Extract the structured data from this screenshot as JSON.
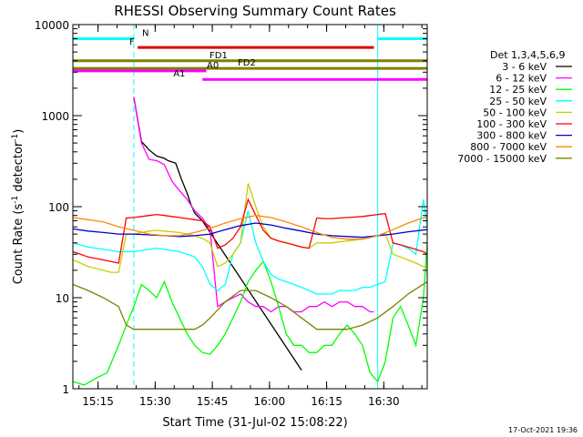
{
  "chart_data": {
    "type": "line",
    "title": "RHESSI Observing Summary Count Rates",
    "xlabel": "Start Time (31-Jul-02 15:08:22)",
    "ylabel_main": "Count Rate (s",
    "ylabel_sup1": "-1",
    "ylabel_mid": " detector",
    "ylabel_sup2": "-1",
    "ylabel_end": ")",
    "y_scale": "log",
    "ylim": [
      1,
      10000
    ],
    "xlim_minutes": [
      0,
      93
    ],
    "x_tick_labels": [
      "15:15",
      "15:30",
      "15:45",
      "16:00",
      "16:15",
      "16:30",
      "16:45"
    ],
    "x_tick_minutes": [
      6.6,
      21.6,
      36.6,
      51.6,
      66.6,
      81.6,
      96.6
    ],
    "y_tick_labels": [
      "1",
      "10",
      "100",
      "1000",
      "10000"
    ],
    "y_tick_values": [
      1,
      10,
      100,
      1000,
      10000
    ],
    "legend_header": "Det 1,3,4,5,6,9",
    "legend_position": "right",
    "series": [
      {
        "name": "3 - 6 keV",
        "color": "#000000",
        "x": [
          16,
          18,
          20,
          22,
          24,
          25,
          27,
          28.5,
          30,
          31,
          32,
          34,
          60
        ],
        "y": [
          1600,
          520,
          420,
          360,
          340,
          320,
          300,
          200,
          140,
          105,
          85,
          70,
          1.6
        ]
      },
      {
        "name": "6 - 12 keV",
        "color": "#ff00ff",
        "x": [
          16,
          17,
          18,
          20,
          22,
          24,
          26,
          28,
          30,
          32,
          34,
          36,
          38,
          40,
          42,
          44,
          46,
          48,
          50,
          52,
          54,
          56,
          58,
          60,
          62,
          64,
          66,
          68,
          70,
          72,
          74,
          76,
          78,
          79
        ],
        "y": [
          1600,
          900,
          500,
          330,
          320,
          290,
          190,
          150,
          120,
          90,
          75,
          55,
          8,
          9,
          10,
          11,
          9,
          8,
          8,
          7,
          8,
          8,
          7,
          7,
          8,
          8,
          9,
          8,
          9,
          9,
          8,
          8,
          7,
          7
        ]
      },
      {
        "name": "12 - 25 keV",
        "color": "#00ff00",
        "x": [
          0,
          3,
          6,
          9,
          12,
          14,
          16,
          18,
          20,
          22,
          24,
          26,
          28,
          30,
          32,
          34,
          36,
          38,
          40,
          42,
          44,
          46,
          48,
          50,
          52,
          54,
          56,
          58,
          60,
          62,
          64,
          66,
          68,
          70,
          72,
          74,
          76,
          78,
          80,
          82,
          84,
          86,
          88,
          90,
          92,
          93
        ],
        "y": [
          1.2,
          1.1,
          1.3,
          1.5,
          3,
          5,
          8,
          14,
          12,
          10,
          15,
          9,
          6,
          4,
          3,
          2.5,
          2.4,
          3,
          4,
          6,
          9,
          15,
          20,
          25,
          15,
          8,
          4,
          3,
          3,
          2.5,
          2.5,
          3,
          3,
          4,
          5,
          4,
          3,
          1.5,
          1.2,
          2,
          6,
          8,
          5,
          3,
          10,
          40
        ]
      },
      {
        "name": "25 - 50 keV",
        "color": "#00ffff",
        "x": [
          0,
          2,
          4,
          6,
          8,
          10,
          12,
          14,
          16,
          18,
          20,
          22,
          24,
          26,
          28,
          30,
          32,
          34,
          36,
          38,
          40,
          42,
          44,
          46,
          48,
          50,
          52,
          54,
          56,
          58,
          60,
          62,
          64,
          66,
          68,
          70,
          72,
          74,
          76,
          78,
          80,
          82,
          84,
          86,
          88,
          90,
          92,
          93
        ],
        "y": [
          40,
          38,
          36,
          35,
          34,
          33,
          32,
          32,
          32,
          33,
          34,
          35,
          34,
          33,
          32,
          30,
          28,
          22,
          14,
          12,
          14,
          30,
          40,
          90,
          40,
          25,
          18,
          16,
          15,
          14,
          13,
          12,
          11,
          11,
          11,
          12,
          12,
          12,
          13,
          13,
          14,
          15,
          40,
          38,
          35,
          30,
          120,
          60
        ]
      },
      {
        "name": "50 - 100 keV",
        "color": "#cccc00",
        "x": [
          0,
          2,
          4,
          6,
          8,
          10,
          12,
          14,
          16,
          18,
          20,
          22,
          24,
          26,
          28,
          30,
          32,
          34,
          36,
          38,
          40,
          42,
          44,
          46,
          48,
          50,
          52,
          54,
          56,
          58,
          60,
          62,
          64,
          66,
          68,
          70,
          72,
          74,
          76,
          78,
          80,
          82,
          84,
          86,
          88,
          90,
          92,
          93
        ],
        "y": [
          26,
          24,
          22,
          21,
          20,
          19,
          19,
          50,
          50,
          52,
          54,
          55,
          54,
          53,
          52,
          50,
          48,
          45,
          40,
          22,
          24,
          30,
          40,
          180,
          100,
          60,
          45,
          42,
          40,
          38,
          36,
          35,
          40,
          40,
          40,
          41,
          42,
          43,
          44,
          46,
          48,
          50,
          30,
          28,
          26,
          24,
          22,
          22
        ]
      },
      {
        "name": "100 - 300 keV",
        "color": "#ff0000",
        "x": [
          0,
          2,
          4,
          6,
          8,
          10,
          12,
          14,
          16,
          18,
          20,
          22,
          24,
          26,
          28,
          30,
          32,
          34,
          36,
          38,
          40,
          42,
          44,
          46,
          48,
          50,
          52,
          54,
          56,
          58,
          60,
          62,
          64,
          66,
          68,
          70,
          72,
          74,
          76,
          78,
          80,
          82,
          84,
          86,
          88,
          90,
          92,
          93
        ],
        "y": [
          32,
          30,
          28,
          27,
          26,
          25,
          24,
          75,
          76,
          78,
          80,
          82,
          80,
          78,
          76,
          74,
          72,
          70,
          60,
          35,
          38,
          45,
          60,
          120,
          80,
          55,
          45,
          42,
          40,
          38,
          36,
          35,
          75,
          74,
          74,
          75,
          76,
          77,
          78,
          80,
          82,
          84,
          40,
          38,
          36,
          34,
          32,
          30
        ]
      },
      {
        "name": "300 - 800 keV",
        "color": "#0000cc",
        "x": [
          0,
          4,
          8,
          12,
          16,
          20,
          24,
          28,
          32,
          36,
          40,
          44,
          48,
          52,
          56,
          60,
          64,
          68,
          72,
          76,
          80,
          84,
          88,
          93
        ],
        "y": [
          57,
          54,
          52,
          50,
          50,
          49,
          48,
          47,
          48,
          50,
          56,
          62,
          66,
          63,
          58,
          54,
          50,
          48,
          47,
          46,
          48,
          50,
          53,
          56
        ]
      },
      {
        "name": "800 - 7000 keV",
        "color": "#ff8800",
        "x": [
          0,
          4,
          8,
          12,
          16,
          20,
          24,
          28,
          32,
          36,
          40,
          44,
          48,
          52,
          56,
          60,
          64,
          68,
          72,
          76,
          80,
          84,
          88,
          93
        ],
        "y": [
          76,
          72,
          68,
          60,
          55,
          50,
          48,
          48,
          52,
          58,
          66,
          74,
          80,
          76,
          68,
          60,
          52,
          46,
          44,
          44,
          48,
          56,
          66,
          78
        ]
      },
      {
        "name": "7000 - 15000 keV",
        "color": "#808000",
        "x": [
          0,
          4,
          8,
          12,
          14,
          16,
          20,
          24,
          28,
          32,
          34,
          36,
          40,
          44,
          48,
          52,
          56,
          60,
          64,
          68,
          72,
          76,
          80,
          84,
          88,
          93
        ],
        "y": [
          14,
          12,
          10,
          8,
          5,
          4.5,
          4.5,
          4.5,
          4.5,
          4.5,
          5,
          6,
          9,
          12,
          12,
          10,
          8,
          6,
          4.5,
          4.5,
          4.5,
          5,
          6,
          8,
          11,
          15
        ]
      }
    ],
    "flag_bars": [
      {
        "label": "N",
        "color": "#00ffff",
        "x_start": 0,
        "x_end": 16,
        "level": 7000
      },
      {
        "label": "",
        "color": "#00ffff",
        "x_start": 80,
        "x_end": 93,
        "level": 7000
      },
      {
        "label": "F",
        "color": "#dd0000",
        "x_start": 17,
        "x_end": 79,
        "level": 5600
      },
      {
        "label": "FD1",
        "color": "#808000",
        "x_start": 0,
        "x_end": 93,
        "level": 4000
      },
      {
        "label": "FD2",
        "color": "#808000",
        "x_start": 0,
        "x_end": 93,
        "level": 3300
      },
      {
        "label": "A0",
        "color": "#ff00ff",
        "x_start": 0,
        "x_end": 35,
        "level": 3100
      },
      {
        "label": "A1",
        "color": "#ff00ff",
        "x_start": 34,
        "x_end": 93,
        "level": 2500
      }
    ],
    "vertical_markers_solid": [
      0,
      80,
      93
    ],
    "vertical_markers_dashed": [
      16,
      93
    ]
  },
  "footer_date": "17-Oct-2021 19:36"
}
